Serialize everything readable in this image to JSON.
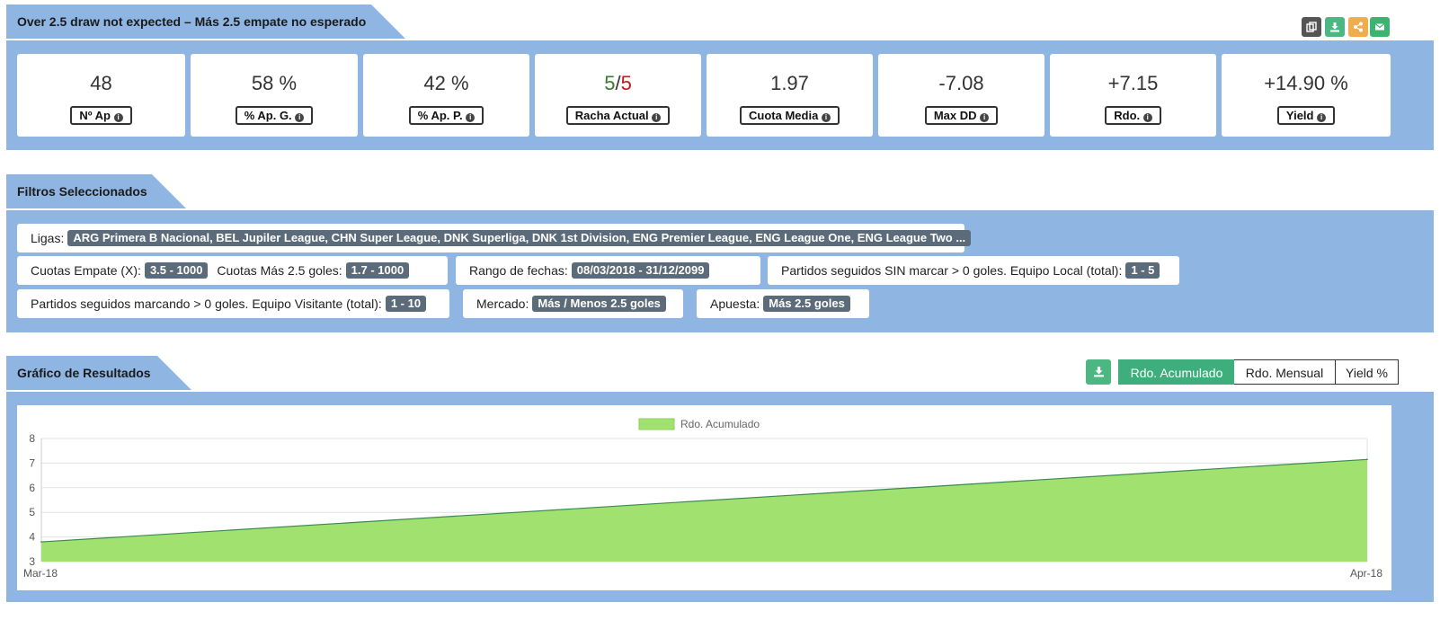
{
  "header": {
    "title": "Over 2.5 draw not expected – Más 2.5 empate no esperado",
    "actions": [
      {
        "icon": "copy-icon",
        "color": "#555555"
      },
      {
        "icon": "download-icon",
        "color": "#4cb782"
      },
      {
        "icon": "share-icon",
        "color": "#f0ad4e"
      },
      {
        "icon": "envelope-icon",
        "color": "#3cb371"
      }
    ]
  },
  "stats": [
    {
      "value": "48",
      "label": "Nº Ap",
      "color": "default"
    },
    {
      "value": "58 %",
      "label": "% Ap. G.",
      "color": "default"
    },
    {
      "value": "42 %",
      "label": "% Ap. P.",
      "color": "default"
    },
    {
      "value_a": "5",
      "sep": "/",
      "value_b": "5",
      "label": "Racha Actual",
      "color": "split"
    },
    {
      "value": "1.97",
      "label": "Cuota Media",
      "color": "default"
    },
    {
      "value": "-7.08",
      "label": "Max DD",
      "color": "red"
    },
    {
      "value": "+7.15",
      "label": "Rdo.",
      "color": "green"
    },
    {
      "value": "+14.90 %",
      "label": "Yield",
      "color": "green"
    }
  ],
  "filters": {
    "title": "Filtros Seleccionados",
    "ligas_label": "Ligas:",
    "ligas_value": "ARG Primera B Nacional, BEL Jupiler League, CHN Super League, DNK Superliga, DNK 1st Division, ENG Premier League, ENG League One, ENG League Two ...",
    "cuota_empate_label": "Cuotas Empate (X):",
    "cuota_empate_value": "3.5 - 1000",
    "cuota_mas_label": "Cuotas Más 2.5 goles:",
    "cuota_mas_value": "1.7 - 1000",
    "rango_label": "Rango de fechas:",
    "rango_value": "08/03/2018 - 31/12/2099",
    "sin_marcar_label": "Partidos seguidos SIN marcar > 0 goles. Equipo Local (total):",
    "sin_marcar_value": "1 - 5",
    "marcando_label": "Partidos seguidos marcando > 0 goles. Equipo Visitante (total):",
    "marcando_value": "1 - 10",
    "mercado_label": "Mercado:",
    "mercado_value": "Más / Menos 2.5 goles",
    "apuesta_label": "Apuesta:",
    "apuesta_value": "Más 2.5 goles"
  },
  "results": {
    "title": "Gráfico de Resultados",
    "download_icon": "download-icon",
    "toggles": [
      {
        "label": "Rdo. Acumulado",
        "active": true
      },
      {
        "label": "Rdo. Mensual",
        "active": false
      },
      {
        "label": "Yield %",
        "active": false
      }
    ]
  },
  "chart_data": {
    "type": "area",
    "x": [
      "Mar-18",
      "Apr-18"
    ],
    "series": [
      {
        "name": "Rdo. Acumulado",
        "values": [
          3.8,
          7.15
        ],
        "color": "#a1e170"
      }
    ],
    "ylim": [
      3,
      8
    ],
    "yticks": [
      "3",
      "4",
      "5",
      "6",
      "7",
      "8"
    ],
    "legend": "top-center",
    "grid": true
  }
}
